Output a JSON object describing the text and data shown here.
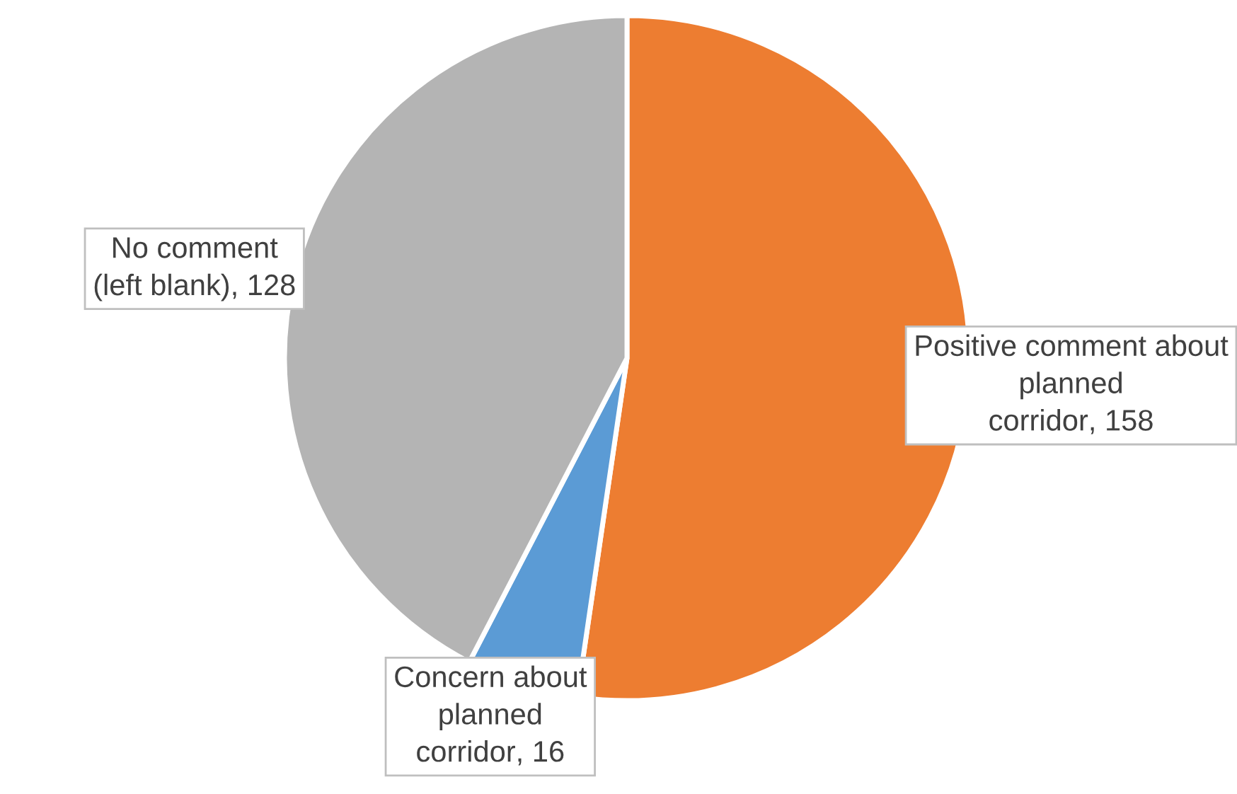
{
  "chart_data": {
    "type": "pie",
    "categories": [
      "Positive comment about\nplanned\ncorridor",
      "Concern about\nplanned\ncorridor",
      "No comment\n(left blank)"
    ],
    "values": [
      158,
      16,
      128
    ],
    "colors": [
      "#ed7d31",
      "#5b9bd5",
      "#b4b4b4"
    ],
    "value_labels": [
      ", 158",
      ", 16",
      ", 128"
    ]
  }
}
